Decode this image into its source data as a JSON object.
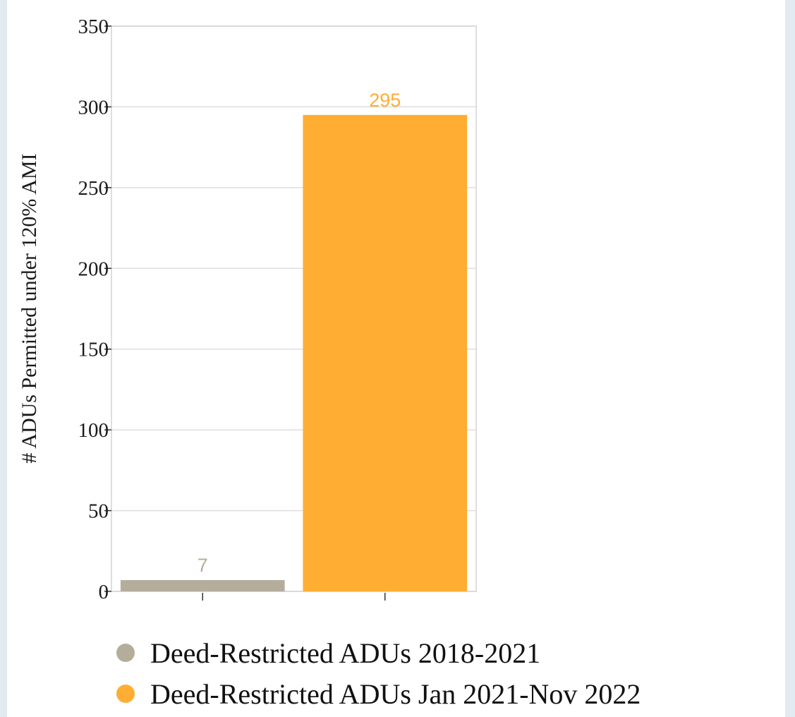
{
  "chart_data": {
    "type": "bar",
    "categories": [
      "Deed-Restricted ADUs 2018-2021",
      "Deed-Restricted ADUs Jan 2021-Nov 2022"
    ],
    "values": [
      7,
      295
    ],
    "colors": [
      "#b5ad9c",
      "#ffad33"
    ],
    "data_labels": [
      "7",
      "295"
    ],
    "title": "",
    "xlabel": "",
    "ylabel": "# ADUs Permitted under 120% AMI",
    "ylim": [
      0,
      350
    ],
    "yticks": [
      0,
      50,
      100,
      150,
      200,
      250,
      300,
      350
    ],
    "ytick_labels": [
      "0",
      "50",
      "100",
      "150",
      "200",
      "250",
      "300",
      "350"
    ],
    "grid": true,
    "legend_position": "bottom",
    "legend": [
      {
        "label": "Deed-Restricted ADUs 2018-2021",
        "color": "#b5ad9c"
      },
      {
        "label": "Deed-Restricted ADUs Jan 2021-Nov 2022",
        "color": "#ffad33"
      }
    ]
  }
}
